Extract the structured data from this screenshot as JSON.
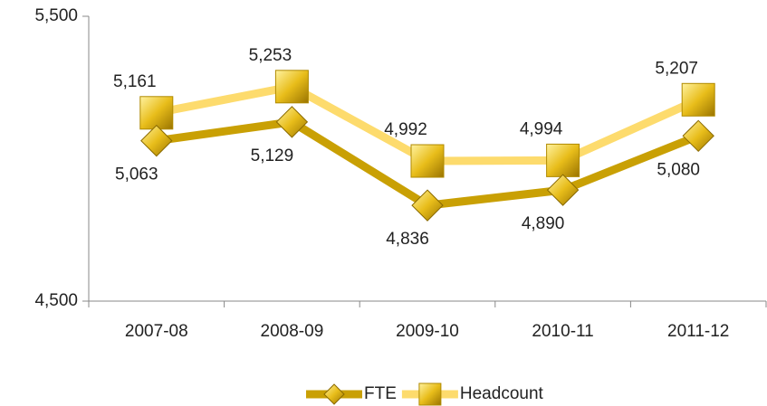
{
  "chart_data": {
    "type": "line",
    "categories": [
      "2007-08",
      "2008-09",
      "2009-10",
      "2010-11",
      "2011-12"
    ],
    "series": [
      {
        "name": "FTE",
        "color": "#c9a004",
        "values": [
          5063,
          5129,
          4836,
          4890,
          5080
        ],
        "value_labels": [
          "5,063",
          "5,129",
          "4,836",
          "4,890",
          "5,080"
        ]
      },
      {
        "name": "Headcount",
        "color": "#fddb6d",
        "values": [
          5161,
          5253,
          4992,
          4994,
          5207
        ],
        "value_labels": [
          "5,161",
          "5,253",
          "4,992",
          "4,994",
          "5,207"
        ]
      }
    ],
    "ylim": [
      4500,
      5500
    ],
    "yticks": [
      {
        "value": 4500,
        "label": "4,500"
      },
      {
        "value": 5500,
        "label": "5,500"
      }
    ],
    "legend": "bottom"
  }
}
